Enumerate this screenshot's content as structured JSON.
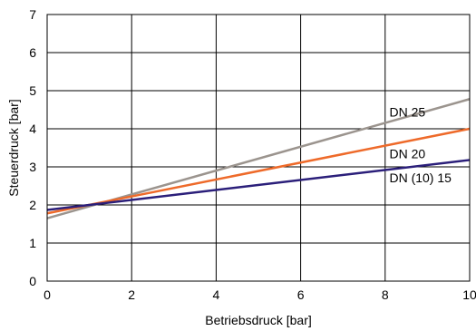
{
  "chart_data": {
    "type": "line",
    "title": "",
    "xlabel": "Betriebsdruck [bar]",
    "ylabel": "Steuerdruck [bar]",
    "xlim": [
      0,
      10
    ],
    "ylim": [
      0,
      7
    ],
    "x_ticks": [
      "0",
      "2",
      "4",
      "6",
      "8",
      "10"
    ],
    "y_ticks": [
      "0",
      "1",
      "2",
      "3",
      "4",
      "5",
      "6",
      "7"
    ],
    "grid": true,
    "legend": "inline labels at right",
    "series": [
      {
        "name": "DN 25",
        "color": "#9b948e",
        "x": [
          0,
          10
        ],
        "y": [
          1.65,
          4.78
        ]
      },
      {
        "name": "DN 20",
        "color": "#ee6a2a",
        "x": [
          0,
          10
        ],
        "y": [
          1.78,
          4.0
        ]
      },
      {
        "name": "DN (10) 15",
        "color": "#2b1f7a",
        "x": [
          0,
          10
        ],
        "y": [
          1.87,
          3.18
        ]
      }
    ]
  }
}
